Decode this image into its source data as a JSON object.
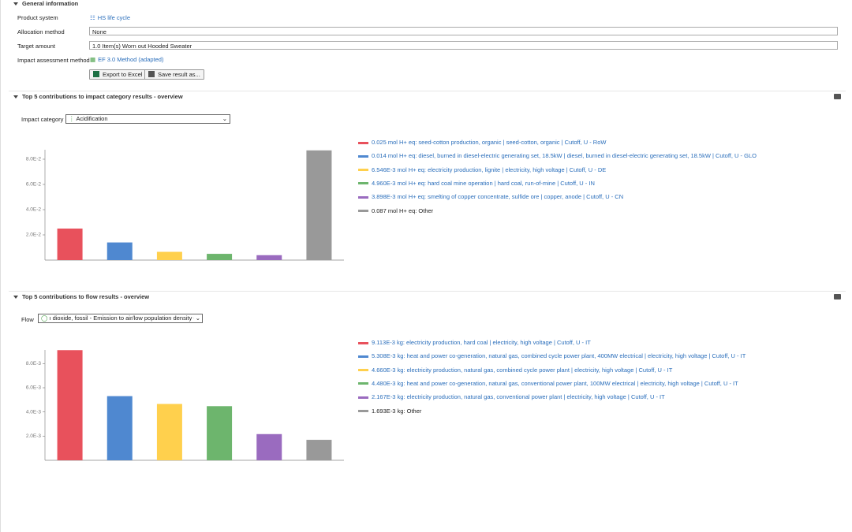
{
  "general": {
    "title": "General information",
    "fields": [
      {
        "label": "Product system",
        "value": "HS life cycle"
      },
      {
        "label": "Allocation method",
        "value": "None"
      },
      {
        "label": "Target amount",
        "value": "1.0 Item(s) Worn out Hooded Sweater"
      },
      {
        "label": "Impact assessment method",
        "value": "EF 3.0 Method (adapted)"
      }
    ],
    "buttons": [
      "Export to Excel",
      "Save result as..."
    ]
  },
  "impact_section": {
    "title": "Top 5 contributions to impact category results - overview",
    "selector_label": "Impact category",
    "selector_value": "Acidification",
    "chart": {
      "type": "bar",
      "values": [
        0.025,
        0.014,
        0.006546,
        0.00496,
        0.003898,
        0.087
      ],
      "labels": [
        "0.025 mol H+ eq: seed-cotton production, organic | seed-cotton, organic | Cutoff, U - RoW",
        "0.014 mol H+ eq: diesel, burned in diesel-electric generating set, 18.5kW | diesel, burned in diesel-electric generating set, 18.5kW | Cutoff, U - GLO",
        "6.546E-3 mol H+ eq: electricity production, lignite | electricity, high voltage | Cutoff, U - DE",
        "4.960E-3 mol H+ eq: hard coal mine operation | hard coal, run-of-mine | Cutoff, U - IN",
        "3.898E-3 mol H+ eq: smelting of copper concentrate, sulfide ore | copper, anode | Cutoff, U - CN",
        "0.087 mol H+ eq: Other"
      ],
      "colors": [
        "#e8515c",
        "#4f88d0",
        "#ffd04d",
        "#6db56d",
        "#9a6bbf",
        "#999999"
      ],
      "ylim": [
        0,
        0.0875
      ],
      "yticks": [
        {
          "value": 0.02,
          "label": "2.0E-2"
        },
        {
          "value": 0.04,
          "label": "4.0E-2"
        },
        {
          "value": 0.06,
          "label": "6.0E-2"
        },
        {
          "value": 0.08,
          "label": "8.0E-2"
        }
      ]
    }
  },
  "flow_section": {
    "title": "Top 5 contributions to flow results - overview",
    "selector_label": "Flow",
    "selector_value": "ı dioxide, fossil - Emission to air/low population density - IT",
    "chart": {
      "type": "bar",
      "values": [
        0.009113,
        0.005308,
        0.00466,
        0.00448,
        0.002167,
        0.001693
      ],
      "labels": [
        "9.113E-3 kg: electricity production, hard coal | electricity, high voltage | Cutoff, U - IT",
        "5.308E-3 kg: heat and power co-generation, natural gas, combined cycle power plant, 400MW electrical | electricity, high voltage | Cutoff, U - IT",
        "4.660E-3 kg: electricity production, natural gas, combined cycle power plant | electricity, high voltage | Cutoff, U - IT",
        "4.480E-3 kg: heat and power co-generation, natural gas, conventional power plant, 100MW electrical | electricity, high voltage | Cutoff, U - IT",
        "2.167E-3 kg: electricity production, natural gas, conventional power plant | electricity, high voltage | Cutoff, U - IT",
        "1.693E-3 kg: Other"
      ],
      "colors": [
        "#e8515c",
        "#4f88d0",
        "#ffd04d",
        "#6db56d",
        "#9a6bbf",
        "#999999"
      ],
      "ylim": [
        0,
        0.00913
      ],
      "yticks": [
        {
          "value": 0.002,
          "label": "2.0E-3"
        },
        {
          "value": 0.004,
          "label": "4.0E-3"
        },
        {
          "value": 0.006,
          "label": "6.0E-3"
        },
        {
          "value": 0.008,
          "label": "8.0E-3"
        }
      ]
    }
  }
}
